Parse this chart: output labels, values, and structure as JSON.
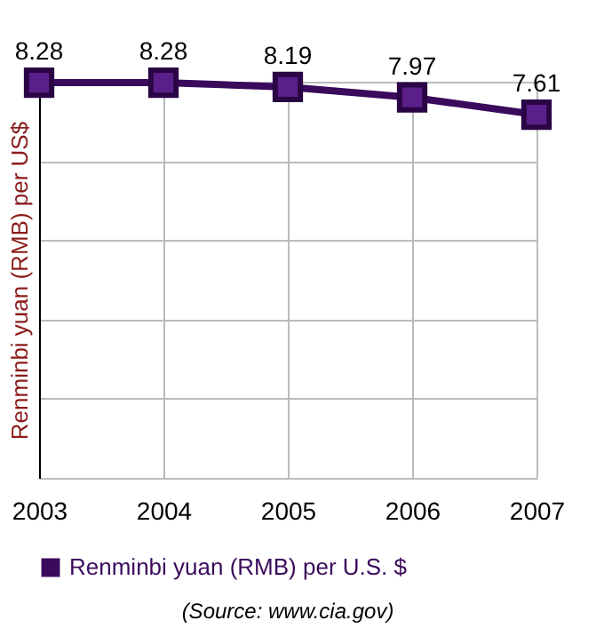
{
  "chart_data": {
    "type": "line",
    "ylabel": "Renminbi yuan (RMB) per US$",
    "categories": [
      "2003",
      "2004",
      "2005",
      "2006",
      "2007"
    ],
    "series": [
      {
        "name": "Renminbi yuan (RMB) per U.S. $",
        "color": "#3a0a5c",
        "values": [
          8.28,
          8.28,
          8.19,
          7.97,
          7.61
        ]
      }
    ],
    "ylim": [
      0,
      8.3
    ],
    "yticks": [
      {
        "value": 0,
        "label": null
      },
      {
        "value": 1.66,
        "label": null
      },
      {
        "value": 3.32,
        "label": null
      },
      {
        "value": 4.98,
        "label": null
      },
      {
        "value": 6.64,
        "label": null
      },
      {
        "value": 8.3,
        "label": null
      }
    ],
    "tick_labels": "x",
    "grid": true,
    "legend": "bottom",
    "marker": "square",
    "line_style": "solid",
    "data_labels": true,
    "annotations": [
      "(Source: www.cia.gov)"
    ]
  }
}
